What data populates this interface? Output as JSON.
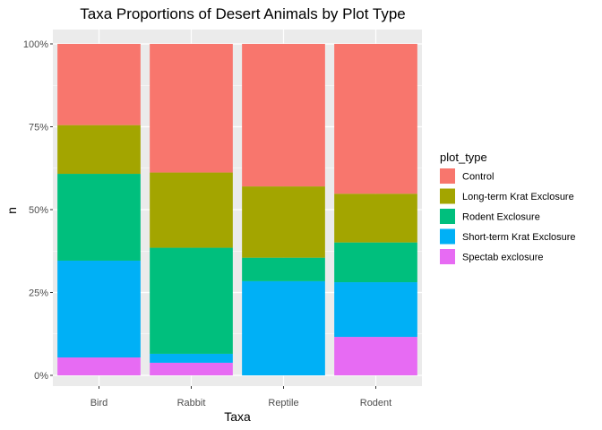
{
  "chart_data": {
    "type": "bar",
    "stacked": true,
    "normalized": true,
    "title": "Taxa Proportions of Desert Animals by Plot Type",
    "xlabel": "Taxa",
    "ylabel": "n",
    "ylim": [
      0,
      1
    ],
    "yticks": [
      {
        "value": 0,
        "label": "0%"
      },
      {
        "value": 0.25,
        "label": "25%"
      },
      {
        "value": 0.5,
        "label": "50%"
      },
      {
        "value": 0.75,
        "label": "75%"
      },
      {
        "value": 1,
        "label": "100%"
      }
    ],
    "grid": true,
    "legend_position": "right",
    "legend_title": "plot_type",
    "categories": [
      "Bird",
      "Rabbit",
      "Reptile",
      "Rodent"
    ],
    "series": [
      {
        "name": "Control",
        "color": "#F8766D",
        "values": [
          0.245,
          0.388,
          0.43,
          0.452
        ]
      },
      {
        "name": "Long-term Krat Exclosure",
        "color": "#A3A500",
        "values": [
          0.147,
          0.227,
          0.215,
          0.147
        ]
      },
      {
        "name": "Rodent Exclosure",
        "color": "#00BF7D",
        "values": [
          0.262,
          0.32,
          0.071,
          0.12
        ]
      },
      {
        "name": "Short-term Krat Exclosure",
        "color": "#00B0F6",
        "values": [
          0.292,
          0.027,
          0.284,
          0.165
        ]
      },
      {
        "name": "Spectab exclosure",
        "color": "#E76BF3",
        "values": [
          0.054,
          0.038,
          0.0,
          0.116
        ]
      }
    ]
  }
}
